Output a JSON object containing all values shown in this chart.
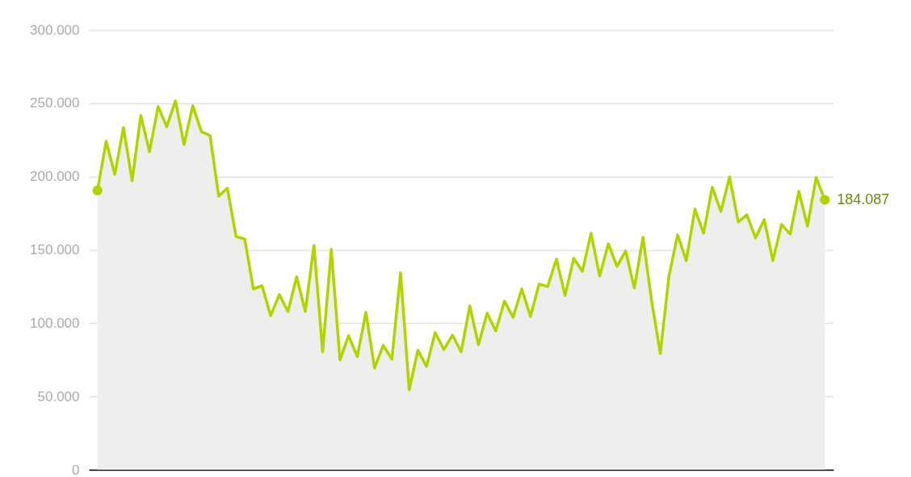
{
  "chart_data": {
    "type": "area",
    "categories": [
      null,
      null,
      null,
      null,
      null,
      null,
      null,
      null,
      null,
      null,
      null,
      null,
      null,
      null,
      null,
      null,
      null,
      null,
      null,
      null,
      null,
      null,
      null,
      null,
      null,
      null,
      null,
      null,
      null,
      null,
      null,
      null,
      null,
      null,
      null,
      null,
      null,
      null,
      null,
      null,
      null,
      null,
      null,
      null,
      null,
      null,
      null,
      null,
      null,
      null,
      null,
      null,
      null,
      null,
      null,
      null,
      null,
      null,
      null,
      null,
      null,
      null,
      null,
      null,
      null,
      null,
      null,
      null,
      null,
      null,
      null,
      null,
      null,
      null,
      null,
      null,
      null,
      null,
      null,
      null,
      null,
      null,
      null,
      null,
      null
    ],
    "series": [
      {
        "color": "#b3d300",
        "values": [
          190500,
          224000,
          201500,
          233400,
          197100,
          241700,
          216900,
          247700,
          234000,
          251600,
          221800,
          248300,
          230600,
          227900,
          186600,
          192100,
          159100,
          157400,
          123300,
          125500,
          105100,
          119500,
          107900,
          131600,
          107900,
          153000,
          80400,
          150300,
          74900,
          91400,
          77100,
          107300,
          69400,
          84800,
          75400,
          134300,
          54500,
          81500,
          70500,
          93600,
          82000,
          91900,
          80400,
          111700,
          85300,
          106800,
          94700,
          115000,
          104000,
          123300,
          104600,
          126600,
          125000,
          143700,
          118900,
          144200,
          135400,
          161300,
          132100,
          154100,
          138700,
          149200,
          123900,
          158500,
          115000,
          79300,
          132100,
          160200,
          142600,
          177800,
          161300,
          192700,
          176100,
          199800,
          169000,
          173900,
          158000,
          170600,
          142600,
          167300,
          160700,
          189900,
          166200,
          199300,
          184087
        ],
        "value_labels": [
          null,
          null,
          null,
          null,
          null,
          null,
          null,
          null,
          null,
          null,
          null,
          null,
          null,
          null,
          null,
          null,
          null,
          null,
          null,
          null,
          null,
          null,
          null,
          null,
          null,
          null,
          null,
          null,
          null,
          null,
          null,
          null,
          null,
          null,
          null,
          null,
          null,
          null,
          null,
          null,
          null,
          null,
          null,
          null,
          null,
          null,
          null,
          null,
          null,
          null,
          null,
          null,
          null,
          null,
          null,
          null,
          null,
          null,
          null,
          null,
          null,
          null,
          null,
          null,
          null,
          null,
          null,
          null,
          null,
          null,
          null,
          null,
          null,
          null,
          null,
          null,
          null,
          null,
          null,
          null,
          null,
          null,
          null,
          null,
          "184.087"
        ]
      }
    ],
    "ylim": [
      0,
      300000
    ],
    "yticks": [
      0,
      {
        "value": 50000,
        "label": "50.000"
      },
      {
        "value": 100000,
        "label": "100.000"
      },
      {
        "value": 150000,
        "label": "150.000"
      },
      {
        "value": 200000,
        "label": "200.000"
      },
      {
        "value": 250000,
        "label": "250.000"
      },
      {
        "value": 300000,
        "label": "300.000"
      }
    ],
    "grid": "y",
    "tick_labels": "y"
  }
}
